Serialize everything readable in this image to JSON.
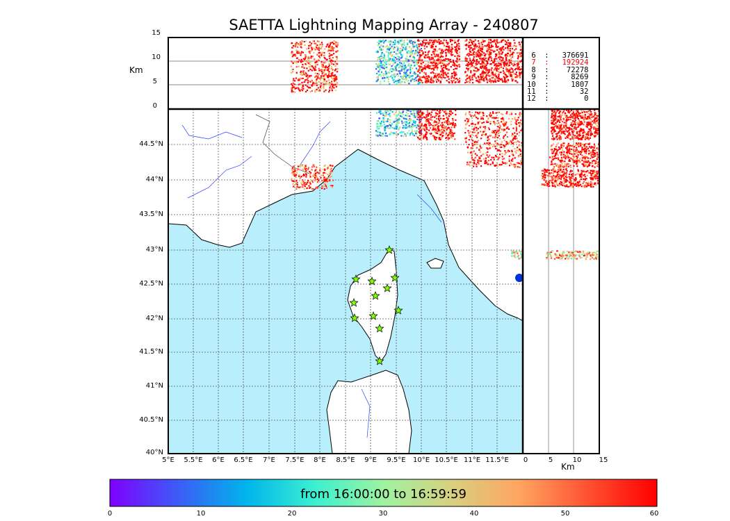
{
  "title": "SAETTA Lightning Mapping Array - 240807",
  "altitude_unit": "Km",
  "top_panel": {
    "y_ticks": [
      "15",
      "10",
      "5",
      "0"
    ]
  },
  "right_panel": {
    "x_ticks": [
      "0",
      "5",
      "10",
      "15"
    ],
    "xlabel": "Km"
  },
  "map": {
    "lat_ticks": [
      "44.5°N",
      "44°N",
      "43.5°N",
      "43°N",
      "42.5°N",
      "42°N",
      "41.5°N",
      "41°N",
      "40.5°N",
      "40°N"
    ],
    "lon_ticks": [
      "5°E",
      "5.5°E",
      "6°E",
      "6.5°E",
      "7°E",
      "7.5°E",
      "8°E",
      "8.5°E",
      "9°E",
      "9.5°E",
      "10°E",
      "10.5°E",
      "11°E",
      "11.5°E"
    ],
    "sea_color": "#b9eefc",
    "station_color": "#80ff00"
  },
  "station_counts": [
    {
      "label": " 6  :   376691",
      "highlight": false
    },
    {
      "label": " 7  :   192924",
      "highlight": true
    },
    {
      "label": " 8  :    72278",
      "highlight": false
    },
    {
      "label": " 9  :     8269",
      "highlight": false
    },
    {
      "label": "10  :     1807",
      "highlight": false
    },
    {
      "label": "11  :       32",
      "highlight": false
    },
    {
      "label": "12  :        0",
      "highlight": false
    }
  ],
  "colorbar": {
    "label": "from 16:00:00 to 16:59:59",
    "ticks": [
      "0",
      "10",
      "20",
      "30",
      "40",
      "50",
      "60"
    ],
    "colors": [
      "#7f00ff",
      "#3c5cf6",
      "#00b5eb",
      "#3cf0d0",
      "#9ef3a0",
      "#d8d080",
      "#ffa460",
      "#ff5030",
      "#ff0000"
    ]
  }
}
